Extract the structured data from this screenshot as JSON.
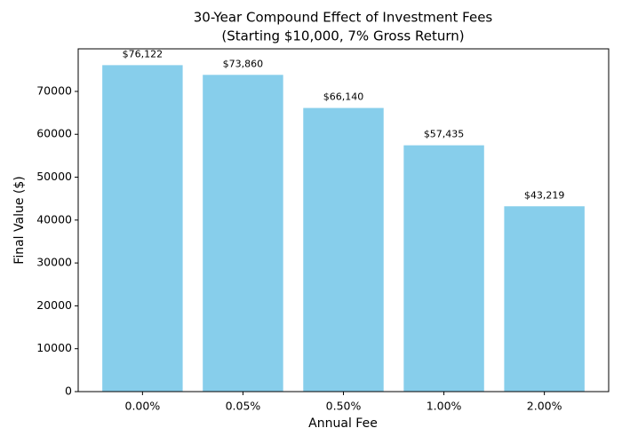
{
  "chart_data": {
    "type": "bar",
    "title": [
      "30-Year Compound Effect of Investment Fees",
      "(Starting $10,000, 7% Gross Return)"
    ],
    "x_label": "Annual Fee",
    "y_label": "Final Value ($)",
    "categories": [
      "0.00%",
      "0.05%",
      "0.50%",
      "1.00%",
      "2.00%"
    ],
    "values": [
      76122,
      73860,
      66140,
      57435,
      43219
    ],
    "value_labels": [
      "$76,122",
      "$73,860",
      "$66,140",
      "$57,435",
      "$43,219"
    ],
    "color": "#87ceeb",
    "ylim": [
      0,
      79928
    ],
    "yticks": [
      0,
      10000,
      20000,
      30000,
      40000,
      50000,
      60000,
      70000
    ],
    "grid": false
  }
}
